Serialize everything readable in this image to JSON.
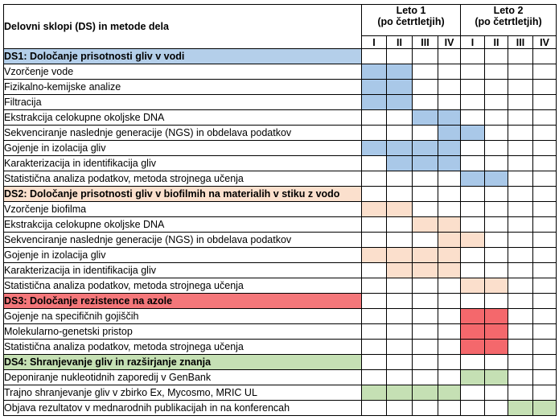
{
  "header": {
    "title": "Delovni sklopi (DS) in metode dela",
    "years": [
      {
        "line1": "Leto 1",
        "line2": "(po četrtletjih)"
      },
      {
        "line1": "Leto 2",
        "line2": "(po četrtletjih)"
      }
    ],
    "quarters": [
      "I",
      "II",
      "III",
      "IV",
      "I",
      "II",
      "III",
      "IV"
    ]
  },
  "colors": {
    "ds1": "#bdd7ee",
    "ds1_fill": "#a9c8e8",
    "ds2": "#fbe5d6",
    "ds3": "#f4777a",
    "ds4": "#c5e0b4"
  },
  "groups": [
    {
      "title": "DS1: Določanje prisotnosti gliv v vodi",
      "color": "#b4cfea",
      "fill": "#a9c8e8",
      "tasks": [
        {
          "label": "Vzorčenje vode",
          "q": [
            1,
            1,
            0,
            0,
            0,
            0,
            0,
            0
          ]
        },
        {
          "label": "Fizikalno-kemijske analize",
          "q": [
            1,
            1,
            0,
            0,
            0,
            0,
            0,
            0
          ]
        },
        {
          "label": "Filtracija",
          "q": [
            1,
            1,
            0,
            0,
            0,
            0,
            0,
            0
          ]
        },
        {
          "label": "Ekstrakcija celokupne okoljske DNA",
          "q": [
            0,
            0,
            1,
            1,
            0,
            0,
            0,
            0
          ]
        },
        {
          "label": "Sekvenciranje naslednje generacije (NGS) in obdelava podatkov",
          "q": [
            0,
            0,
            0,
            1,
            1,
            0,
            0,
            0
          ]
        },
        {
          "label": "Gojenje in izolacija gliv",
          "q": [
            1,
            1,
            1,
            1,
            0,
            0,
            0,
            0
          ]
        },
        {
          "label": "Karakterizacija in identifikacija gliv",
          "q": [
            0,
            1,
            1,
            1,
            0,
            0,
            0,
            0
          ]
        },
        {
          "label": "Statistična analiza podatkov, metoda strojnega učenja",
          "q": [
            0,
            0,
            0,
            0,
            1,
            1,
            0,
            0
          ]
        }
      ]
    },
    {
      "title": "DS2: Določanje prisotnosti gliv v biofilmih na materialih v stiku z vodo",
      "color": "#fbe0cd",
      "fill": "#fbdfcc",
      "tasks": [
        {
          "label": "Vzorčenje biofilma",
          "q": [
            1,
            1,
            0,
            0,
            0,
            0,
            0,
            0
          ]
        },
        {
          "label": "Ekstrakcija celokupne okoljske DNA",
          "q": [
            0,
            0,
            1,
            1,
            0,
            0,
            0,
            0
          ]
        },
        {
          "label": "Sekvenciranje naslednje generacije (NGS) in obdelava podatkov",
          "q": [
            0,
            0,
            0,
            1,
            1,
            0,
            0,
            0
          ]
        },
        {
          "label": "Gojenje in izolacija gliv",
          "q": [
            1,
            1,
            1,
            1,
            0,
            0,
            0,
            0
          ]
        },
        {
          "label": "Karakterizacija in identifikacija gliv",
          "q": [
            0,
            1,
            1,
            1,
            0,
            0,
            0,
            0
          ]
        },
        {
          "label": "Statistična analiza podatkov, metoda strojnega učenja",
          "q": [
            0,
            0,
            0,
            0,
            1,
            1,
            0,
            0
          ]
        }
      ]
    },
    {
      "title": "DS3: Določanje rezistence na azole",
      "color": "#f4777a",
      "fill": "#f4686c",
      "tasks": [
        {
          "label": "Gojenje na specifičnih gojiščih",
          "q": [
            0,
            0,
            0,
            0,
            1,
            1,
            0,
            0
          ]
        },
        {
          "label": "Molekularno-genetski pristop",
          "q": [
            0,
            0,
            0,
            0,
            1,
            1,
            0,
            0
          ]
        },
        {
          "label": "Statistična analiza podatkov, metoda strojnega učenja",
          "q": [
            0,
            0,
            0,
            0,
            1,
            1,
            0,
            0
          ]
        }
      ]
    },
    {
      "title": "DS4: Shranjevanje gliv in razširjanje znanja",
      "color": "#c5e0b4",
      "fill": "#c5e0b4",
      "tasks": [
        {
          "label": "Deponiranje nukleotidnih zaporedij v GenBank",
          "q": [
            0,
            0,
            0,
            0,
            1,
            1,
            0,
            0
          ]
        },
        {
          "label": "Trajno shranjevanje gliv v zbirko Ex, Mycosmo, MRIC UL",
          "q": [
            1,
            1,
            1,
            1,
            0,
            0,
            0,
            0
          ]
        },
        {
          "label": "Objava rezultatov v mednarodnih publikacijah in na konferencah",
          "q": [
            0,
            0,
            0,
            0,
            0,
            0,
            1,
            1
          ]
        }
      ]
    }
  ]
}
